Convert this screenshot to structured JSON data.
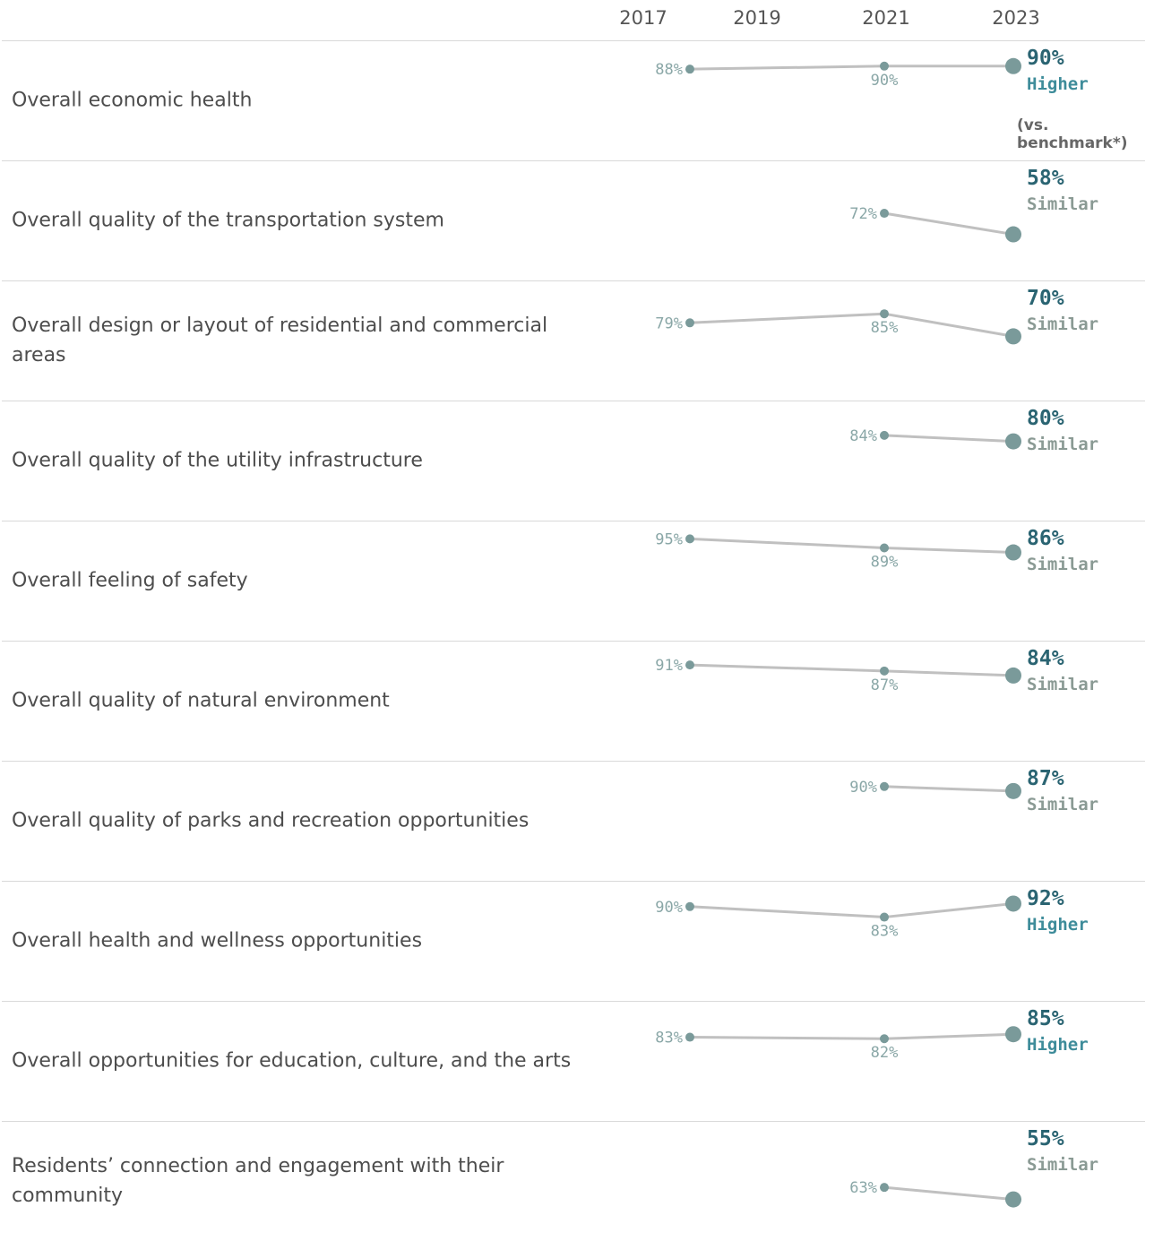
{
  "years": [
    "2017",
    "2019",
    "2021",
    "2023"
  ],
  "benchmark_note": "(vs. benchmark*)",
  "colors": {
    "line": "#c0c0c0",
    "point": "#7a9a9a",
    "value_bold": "#2a6472",
    "higher": "#3e8c9a",
    "similar": "#8a9a94",
    "old_label": "#8aa7a7"
  },
  "chart_data": {
    "type": "line",
    "x": [
      2017,
      2021,
      2023
    ],
    "series_unit": "%",
    "rows": [
      {
        "label": "Overall economic health",
        "values": {
          "2017": 88,
          "2021": 90,
          "2023": 90
        },
        "labels": {
          "2017": "88%",
          "2021": "90%",
          "2023": "90%"
        },
        "comparison": "Higher"
      },
      {
        "label": "Overall quality of the transportation system",
        "values": {
          "2021": 72,
          "2023": 58
        },
        "labels": {
          "2021": "72%",
          "2023": "58%"
        },
        "comparison": "Similar"
      },
      {
        "label": "Overall design or layout of residential and commercial areas",
        "values": {
          "2017": 79,
          "2021": 85,
          "2023": 70
        },
        "labels": {
          "2017": "79%",
          "2021": "85%",
          "2023": "70%"
        },
        "comparison": "Similar"
      },
      {
        "label": "Overall quality of the utility infrastructure",
        "values": {
          "2021": 84,
          "2023": 80
        },
        "labels": {
          "2021": "84%",
          "2023": "80%"
        },
        "comparison": "Similar"
      },
      {
        "label": "Overall feeling of safety",
        "values": {
          "2017": 95,
          "2021": 89,
          "2023": 86
        },
        "labels": {
          "2017": "95%",
          "2021": "89%",
          "2023": "86%"
        },
        "comparison": "Similar"
      },
      {
        "label": "Overall quality of natural environment",
        "values": {
          "2017": 91,
          "2021": 87,
          "2023": 84
        },
        "labels": {
          "2017": "91%",
          "2021": "87%",
          "2023": "84%"
        },
        "comparison": "Similar"
      },
      {
        "label": "Overall quality of parks and recreation opportunities",
        "values": {
          "2021": 90,
          "2023": 87
        },
        "labels": {
          "2021": "90%",
          "2023": "87%"
        },
        "comparison": "Similar"
      },
      {
        "label": "Overall health and wellness opportunities",
        "values": {
          "2017": 90,
          "2021": 83,
          "2023": 92
        },
        "labels": {
          "2017": "90%",
          "2021": "83%",
          "2023": "92%"
        },
        "comparison": "Higher"
      },
      {
        "label": "Overall opportunities for education, culture, and the arts",
        "values": {
          "2017": 83,
          "2021": 82,
          "2023": 85
        },
        "labels": {
          "2017": "83%",
          "2021": "82%",
          "2023": "85%"
        },
        "comparison": "Higher"
      },
      {
        "label": "Residents’ connection and engagement with their community",
        "values": {
          "2021": 63,
          "2023": 55
        },
        "labels": {
          "2021": "63%",
          "2023": "55%"
        },
        "comparison": "Similar"
      }
    ]
  }
}
